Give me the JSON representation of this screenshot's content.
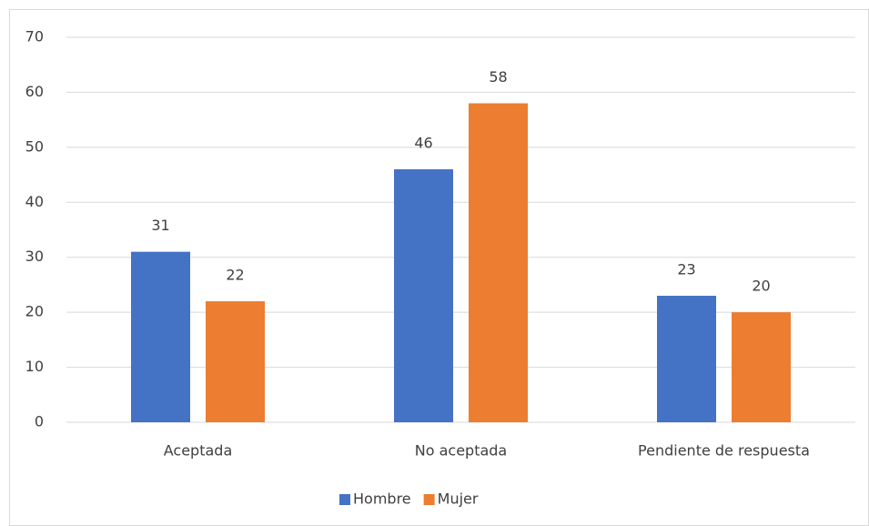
{
  "chart_data": {
    "type": "bar",
    "categories": [
      "Aceptada",
      "No aceptada",
      "Pendiente de respuesta"
    ],
    "series": [
      {
        "name": "Hombre",
        "color": "#4472c4",
        "values": [
          31,
          46,
          23
        ]
      },
      {
        "name": "Mujer",
        "color": "#ed7d31",
        "values": [
          22,
          58,
          20
        ]
      }
    ],
    "ylim": [
      0,
      70
    ],
    "yticks": [
      0,
      10,
      20,
      30,
      40,
      50,
      60,
      70
    ],
    "grid": true,
    "legend": "bottom"
  }
}
